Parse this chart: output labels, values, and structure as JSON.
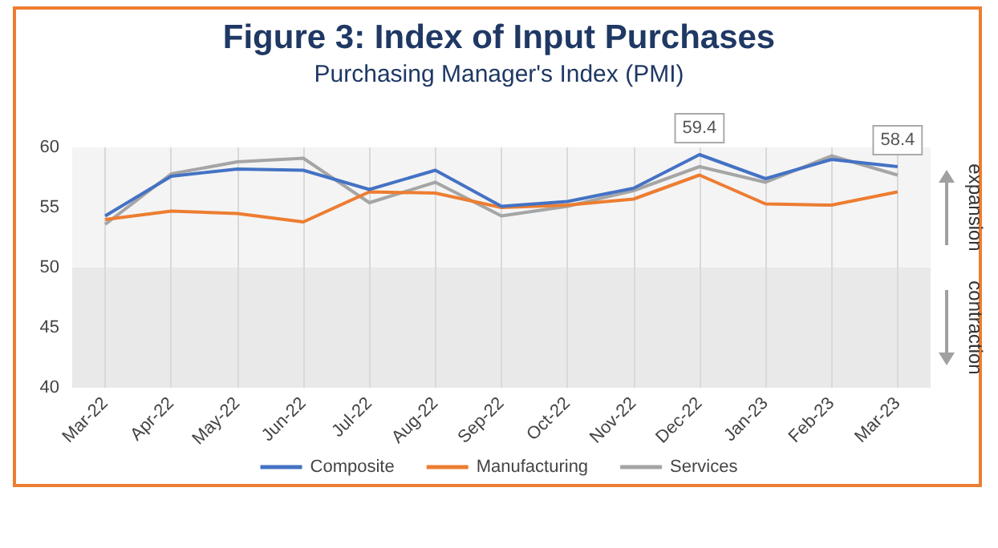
{
  "chart_data": {
    "type": "line",
    "title": "Figure 3: Index of Input Purchases",
    "subtitle": "Purchasing Manager's Index (PMI)",
    "categories": [
      "Mar-22",
      "Apr-22",
      "May-22",
      "Jun-22",
      "Jul-22",
      "Aug-22",
      "Sep-22",
      "Oct-22",
      "Nov-22",
      "Dec-22",
      "Jan-23",
      "Feb-23",
      "Mar-23"
    ],
    "series": [
      {
        "name": "Composite",
        "color": "#4472c4",
        "values": [
          54.3,
          57.6,
          58.2,
          58.1,
          56.5,
          58.1,
          55.1,
          55.5,
          56.6,
          59.4,
          57.4,
          59.0,
          58.4
        ]
      },
      {
        "name": "Manufacturing",
        "color": "#ed7d31",
        "values": [
          54.0,
          54.7,
          54.5,
          53.8,
          56.3,
          56.2,
          55.0,
          55.2,
          55.7,
          57.7,
          55.3,
          55.2,
          56.3
        ]
      },
      {
        "name": "Services",
        "color": "#a5a5a5",
        "values": [
          53.6,
          57.8,
          58.8,
          59.1,
          55.4,
          57.1,
          54.3,
          55.1,
          56.4,
          58.4,
          57.1,
          59.3,
          57.7
        ]
      }
    ],
    "annotations": [
      {
        "text": "59.4",
        "x": "Dec-22",
        "y": 59.4
      },
      {
        "text": "58.4",
        "x": "Mar-23",
        "y": 58.4
      }
    ],
    "bands": [
      {
        "axis": "y",
        "from": 50,
        "to": 60,
        "label": "expansion",
        "color": "#f4f4f4"
      },
      {
        "axis": "y",
        "from": 40,
        "to": 50,
        "label": "contraction",
        "color": "#e9e9e9"
      }
    ],
    "ylim": [
      40,
      60
    ],
    "yticks": [
      40,
      45,
      50,
      55,
      60
    ],
    "grid": "x",
    "legend": "bottom",
    "marker": "none",
    "line_style": "solid"
  }
}
